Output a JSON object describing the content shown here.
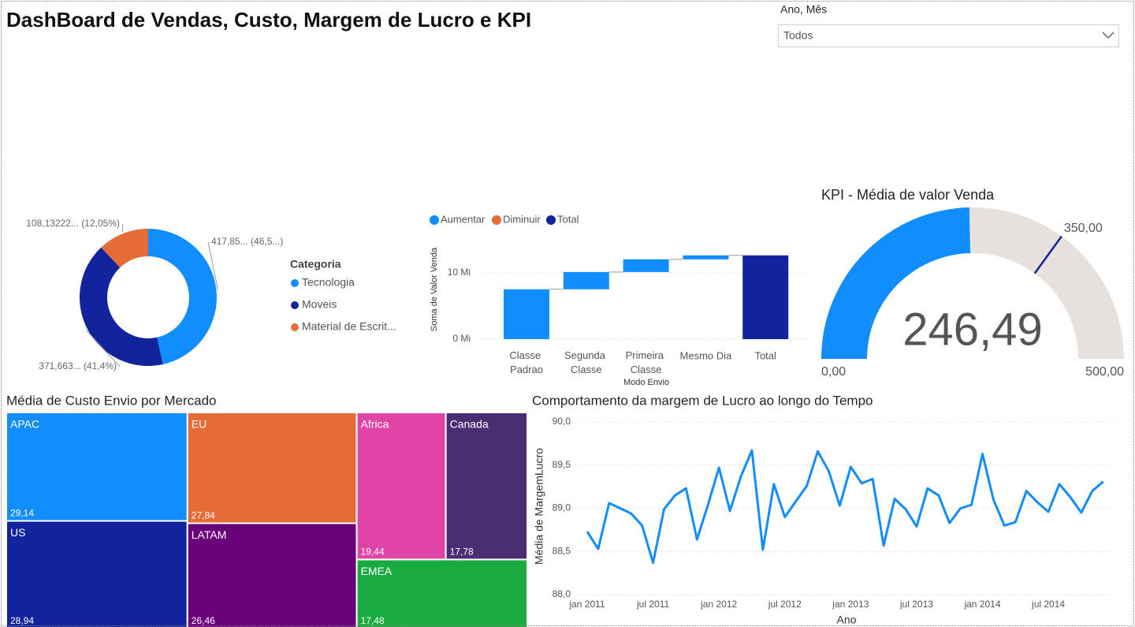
{
  "header": {
    "title": "DashBoard de Vendas, Custo, Margem de Lucro e KPI"
  },
  "slicer": {
    "label": "Ano, Mês",
    "value": "Todos"
  },
  "chart_data": [
    {
      "type": "donut",
      "legend_title": "Categoria",
      "categories": [
        "Tecnologia",
        "Moveis",
        "Material de Escrit..."
      ],
      "values": [
        417.85,
        371.663,
        108.13222
      ],
      "value_labels": [
        "417,85... (46,5...)",
        "371,663... (41,4%)",
        "108,13222... (12,05%)"
      ],
      "colors": [
        "#118dff",
        "#12239e",
        "#e66c37"
      ]
    },
    {
      "type": "waterfall",
      "y_label": "Soma de Valor Venda",
      "x_label": "Modo Envio",
      "categories": [
        "Classe Padrao",
        "Segunda Classe",
        "Primeira Classe",
        "Mesmo Dia",
        "Total"
      ],
      "series": [
        {
          "name": "Aumentar",
          "color": "#118dff",
          "values": [
            7.5,
            2.6,
            1.9,
            0.6,
            null
          ]
        },
        {
          "name": "Diminuir",
          "color": "#e66c37",
          "values": [
            null,
            null,
            null,
            null,
            null
          ]
        },
        {
          "name": "Total",
          "color": "#12239e",
          "values": [
            null,
            null,
            null,
            null,
            12.6
          ]
        }
      ],
      "ylim": [
        0,
        14
      ],
      "yticks": [
        {
          "value": 0,
          "label": "0 Mi"
        },
        {
          "value": 10,
          "label": "10 Mi"
        }
      ],
      "grid": true
    },
    {
      "type": "gauge",
      "title": "KPI - Média de valor Venda",
      "value": 246.49,
      "value_label": "246,49",
      "min": {
        "value": 0,
        "label": "0,00"
      },
      "max": {
        "value": 500,
        "label": "500,00"
      },
      "target": {
        "value": 350,
        "label": "350,00"
      },
      "color": "#118dff",
      "track_color": "#e6e1dc",
      "target_color": "#12239e"
    },
    {
      "type": "treemap",
      "title": "Média de Custo Envio por Mercado",
      "categories": [
        "APAC",
        "US",
        "EU",
        "LATAM",
        "Africa",
        "Canada",
        "EMEA"
      ],
      "values": [
        29.14,
        28.94,
        27.84,
        26.46,
        19.44,
        17.78,
        17.48
      ],
      "value_labels": [
        "29,14",
        "28,94",
        "27,84",
        "26,46",
        "19,44",
        "17,78",
        "17,48"
      ],
      "colors": [
        "#118dff",
        "#12239e",
        "#e66c37",
        "#6b007b",
        "#e044a7",
        "#4b2d73",
        "#1aab40"
      ]
    },
    {
      "type": "line",
      "title": "Comportamento da margem de Lucro ao longo do Tempo",
      "y_label": "Média de MargemLucro",
      "x_label": "Ano",
      "categories": [
        "jan 2011",
        null,
        null,
        null,
        null,
        null,
        "jul 2011",
        null,
        null,
        null,
        null,
        null,
        "jan 2012",
        null,
        null,
        null,
        null,
        null,
        "jul 2012",
        null,
        null,
        null,
        null,
        null,
        "jan 2013",
        null,
        null,
        null,
        null,
        null,
        "jul 2013",
        null,
        null,
        null,
        null,
        null,
        "jan 2014",
        null,
        null,
        null,
        null,
        null,
        "jul 2014",
        null,
        null,
        null,
        null,
        null
      ],
      "values": [
        88.73,
        88.53,
        89.06,
        89.0,
        88.94,
        88.8,
        88.37,
        88.99,
        89.15,
        89.23,
        88.64,
        89.04,
        89.47,
        88.97,
        89.37,
        89.67,
        88.52,
        89.28,
        88.9,
        89.08,
        89.26,
        89.66,
        89.43,
        89.03,
        89.48,
        89.29,
        89.34,
        88.57,
        89.11,
        88.99,
        88.79,
        89.23,
        89.15,
        88.83,
        89.0,
        89.04,
        89.63,
        89.1,
        88.8,
        88.84,
        89.2,
        89.07,
        88.96,
        89.28,
        89.13,
        88.95,
        89.2,
        89.31
      ],
      "color": "#118dff",
      "ylim": [
        88,
        90
      ],
      "yticks": [
        {
          "value": 88,
          "label": "88,0"
        },
        {
          "value": 88.5,
          "label": "88,5"
        },
        {
          "value": 89,
          "label": "89,0"
        },
        {
          "value": 89.5,
          "label": "89,5"
        },
        {
          "value": 90,
          "label": "90,0"
        }
      ],
      "grid": true
    }
  ]
}
